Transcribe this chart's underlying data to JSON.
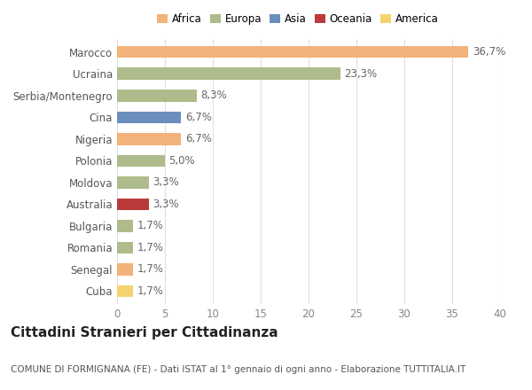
{
  "categories": [
    "Marocco",
    "Ucraina",
    "Serbia/Montenegro",
    "Cina",
    "Nigeria",
    "Polonia",
    "Moldova",
    "Australia",
    "Bulgaria",
    "Romania",
    "Senegal",
    "Cuba"
  ],
  "values": [
    36.7,
    23.3,
    8.3,
    6.7,
    6.7,
    5.0,
    3.3,
    3.3,
    1.7,
    1.7,
    1.7,
    1.7
  ],
  "labels": [
    "36,7%",
    "23,3%",
    "8,3%",
    "6,7%",
    "6,7%",
    "5,0%",
    "3,3%",
    "3,3%",
    "1,7%",
    "1,7%",
    "1,7%",
    "1,7%"
  ],
  "colors": [
    "#F2B27A",
    "#AEBB8A",
    "#AEBB8A",
    "#6A8FBC",
    "#F2B27A",
    "#AEBB8A",
    "#AEBB8A",
    "#BA3A3A",
    "#AEBB8A",
    "#AEBB8A",
    "#F2B27A",
    "#F5D470"
  ],
  "legend_labels": [
    "Africa",
    "Europa",
    "Asia",
    "Oceania",
    "America"
  ],
  "legend_colors": [
    "#F2B27A",
    "#AEBB8A",
    "#6A8FBC",
    "#BA3A3A",
    "#F5D470"
  ],
  "xlim": [
    0,
    40
  ],
  "xticks": [
    0,
    5,
    10,
    15,
    20,
    25,
    30,
    35,
    40
  ],
  "title": "Cittadini Stranieri per Cittadinanza",
  "subtitle": "COMUNE DI FORMIGNANA (FE) - Dati ISTAT al 1° gennaio di ogni anno - Elaborazione TUTTITALIA.IT",
  "bg_color": "#ffffff",
  "grid_color": "#e0e0e0",
  "bar_height": 0.55,
  "label_fontsize": 8.5,
  "title_fontsize": 11,
  "subtitle_fontsize": 7.5
}
